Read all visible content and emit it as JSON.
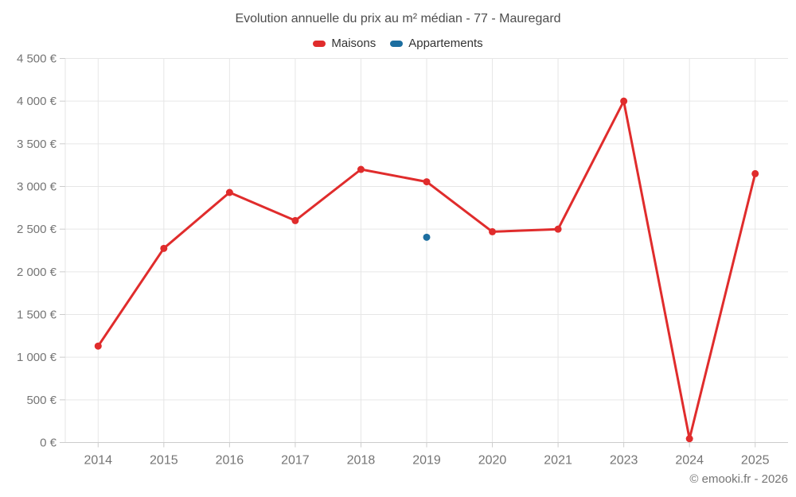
{
  "footer": {
    "copyright": "© emooki.fr - 2026"
  },
  "chart_data": {
    "type": "line",
    "title": "Evolution annuelle du prix au m² médian - 77 - Mauregard",
    "categories": [
      "2014",
      "2015",
      "2016",
      "2017",
      "2018",
      "2019",
      "2020",
      "2021",
      "2023",
      "2024",
      "2025"
    ],
    "series": [
      {
        "name": "Maisons",
        "color": "#e02c2c",
        "values": [
          1130,
          2275,
          2930,
          2600,
          3200,
          3055,
          2470,
          2500,
          4000,
          45,
          3150
        ]
      },
      {
        "name": "Appartements",
        "color": "#1c6ea0",
        "values": [
          null,
          null,
          null,
          null,
          null,
          2405,
          null,
          null,
          null,
          null,
          null
        ]
      }
    ],
    "ylim": [
      0,
      4500
    ],
    "ytick_step": 500,
    "ytick_labels": [
      "0 €",
      "500 €",
      "1 000 €",
      "1 500 €",
      "2 000 €",
      "2 500 €",
      "3 000 €",
      "3 500 €",
      "4 000 €",
      "4 500 €"
    ],
    "ylabel": "",
    "xlabel": "",
    "grid": true,
    "legend_position": "top",
    "colors": {
      "grid": "#e6e6e6",
      "axis_line": "#cccccc",
      "tick": "#cccccc",
      "axis_label": "#757575",
      "title_text": "#4d4d4d",
      "legend_text": "#333333"
    }
  }
}
